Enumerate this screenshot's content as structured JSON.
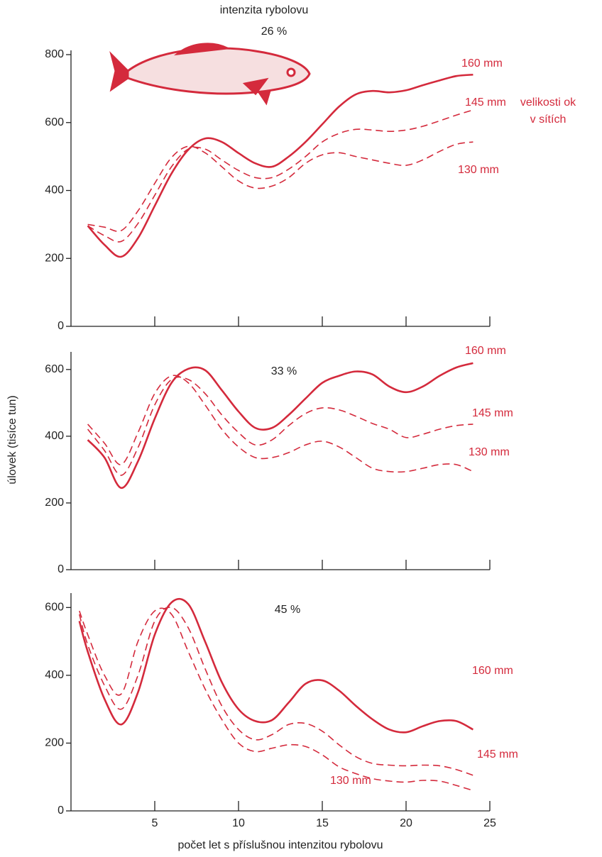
{
  "chart_data": [
    {
      "type": "line",
      "title": "intenzita rybolovu",
      "subtitle": "26 %",
      "legend_title": [
        "velikosti ok",
        "v sítích"
      ],
      "xlim": [
        0,
        25
      ],
      "xticks": [
        5,
        10,
        15,
        20,
        25
      ],
      "xtick_labels": false,
      "ylim": [
        0,
        800
      ],
      "yticks": [
        0,
        200,
        400,
        600,
        800
      ],
      "x": [
        1,
        2,
        3,
        4,
        5,
        6,
        7,
        8,
        9,
        10,
        11,
        12,
        13,
        14,
        15,
        16,
        17,
        18,
        19,
        20,
        21,
        22,
        23,
        24
      ],
      "series": [
        {
          "name": "160 mm",
          "color": "#d42a3c",
          "dashed": false,
          "values": [
            296,
            240,
            205,
            260,
            355,
            450,
            520,
            553,
            543,
            510,
            480,
            470,
            500,
            543,
            595,
            647,
            683,
            693,
            689,
            695,
            710,
            724,
            737,
            741
          ]
        },
        {
          "name": "145 mm",
          "color": "#d42a3c",
          "dashed": true,
          "values": [
            296,
            267,
            250,
            303,
            386,
            470,
            522,
            522,
            490,
            459,
            438,
            438,
            463,
            500,
            543,
            568,
            580,
            578,
            574,
            578,
            589,
            605,
            622,
            637
          ]
        },
        {
          "name": "130 mm",
          "color": "#d42a3c",
          "dashed": true,
          "values": [
            300,
            292,
            282,
            340,
            421,
            497,
            530,
            511,
            470,
            428,
            407,
            413,
            438,
            480,
            505,
            511,
            500,
            490,
            480,
            474,
            490,
            515,
            536,
            543
          ]
        }
      ]
    },
    {
      "type": "line",
      "title": "33 %",
      "y_label": "úlovek (tisíce tun)",
      "xlim": [
        0,
        25
      ],
      "xticks": [
        5,
        10,
        15,
        20,
        25
      ],
      "xtick_labels": false,
      "ylim": [
        0,
        640
      ],
      "yticks": [
        0,
        200,
        400,
        600
      ],
      "x": [
        1,
        2,
        3,
        4,
        5,
        6,
        7,
        8,
        9,
        10,
        11,
        12,
        13,
        14,
        15,
        16,
        17,
        18,
        19,
        20,
        21,
        22,
        23,
        24
      ],
      "series": [
        {
          "name": "160 mm",
          "color": "#d42a3c",
          "dashed": false,
          "values": [
            389,
            336,
            245,
            325,
            453,
            560,
            602,
            598,
            538,
            474,
            425,
            425,
            464,
            513,
            560,
            581,
            594,
            585,
            549,
            532,
            549,
            581,
            606,
            619
          ]
        },
        {
          "name": "145 mm",
          "color": "#d42a3c",
          "dashed": true,
          "values": [
            421,
            357,
            283,
            366,
            494,
            570,
            570,
            528,
            464,
            411,
            374,
            389,
            432,
            468,
            485,
            479,
            460,
            438,
            421,
            396,
            406,
            421,
            432,
            436
          ]
        },
        {
          "name": "130 mm",
          "color": "#d42a3c",
          "dashed": true,
          "values": [
            436,
            379,
            315,
            411,
            528,
            581,
            560,
            494,
            421,
            368,
            336,
            336,
            351,
            374,
            385,
            368,
            336,
            304,
            294,
            294,
            304,
            315,
            315,
            294
          ]
        }
      ]
    },
    {
      "type": "line",
      "title": "45 %",
      "x_label": "počet let s příslušnou intenzitou rybolovu",
      "xlim": [
        0,
        25
      ],
      "xticks": [
        5,
        10,
        15,
        20,
        25
      ],
      "xtick_labels": true,
      "ylim": [
        0,
        630
      ],
      "yticks": [
        0,
        200,
        400,
        600
      ],
      "x": [
        0.5,
        1,
        2,
        3,
        4,
        5,
        6,
        7,
        8,
        9,
        10,
        11,
        12,
        13,
        14,
        15,
        16,
        17,
        18,
        19,
        20,
        21,
        22,
        23,
        24
      ],
      "series": [
        {
          "name": "160 mm",
          "color": "#d42a3c",
          "dashed": false,
          "values": [
            560,
            470,
            330,
            255,
            350,
            520,
            615,
            610,
            500,
            380,
            300,
            265,
            268,
            320,
            375,
            385,
            355,
            310,
            270,
            240,
            232,
            250,
            265,
            265,
            240
          ]
        },
        {
          "name": "145 mm",
          "color": "#d42a3c",
          "dashed": true,
          "values": [
            580,
            490,
            370,
            300,
            400,
            560,
            600,
            540,
            420,
            310,
            240,
            210,
            225,
            255,
            258,
            235,
            195,
            160,
            140,
            135,
            133,
            135,
            133,
            122,
            105
          ]
        },
        {
          "name": "130 mm",
          "color": "#d42a3c",
          "dashed": true,
          "values": [
            590,
            520,
            400,
            345,
            500,
            590,
            580,
            470,
            360,
            270,
            200,
            175,
            185,
            195,
            190,
            165,
            130,
            110,
            95,
            88,
            85,
            90,
            88,
            75,
            60
          ]
        }
      ]
    }
  ]
}
